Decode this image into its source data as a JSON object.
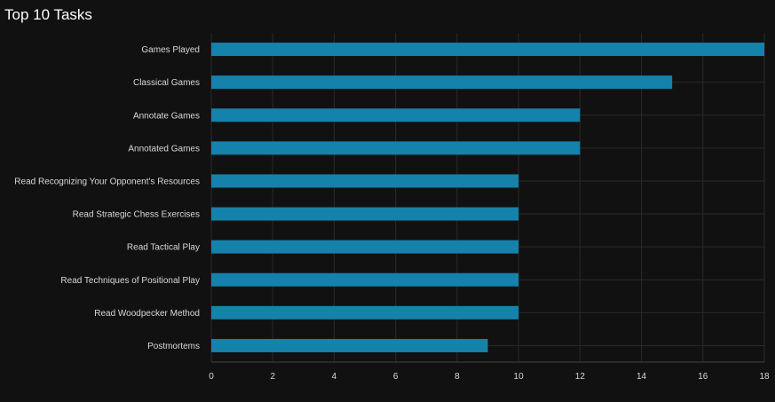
{
  "chart_data": {
    "type": "bar",
    "orientation": "horizontal",
    "title": "Top 10 Tasks",
    "categories": [
      "Games Played",
      "Classical Games",
      "Annotate Games",
      "Annotated Games",
      "Read Recognizing Your Opponent's Resources",
      "Read Strategic Chess Exercises",
      "Read Tactical Play",
      "Read Techniques of Positional Play",
      "Read Woodpecker Method",
      "Postmortems"
    ],
    "values": [
      18,
      15,
      12,
      12,
      10,
      10,
      10,
      10,
      10,
      9
    ],
    "xlim": [
      0,
      18
    ],
    "xticks": [
      0,
      2,
      4,
      6,
      8,
      10,
      12,
      14,
      16,
      18
    ],
    "grid": true,
    "legend": "none",
    "colors": {
      "bar": "#1582ab",
      "background": "#111111",
      "grid": "#2a2a2a",
      "text": "#d9d9d9",
      "title": "#ffffff"
    }
  }
}
